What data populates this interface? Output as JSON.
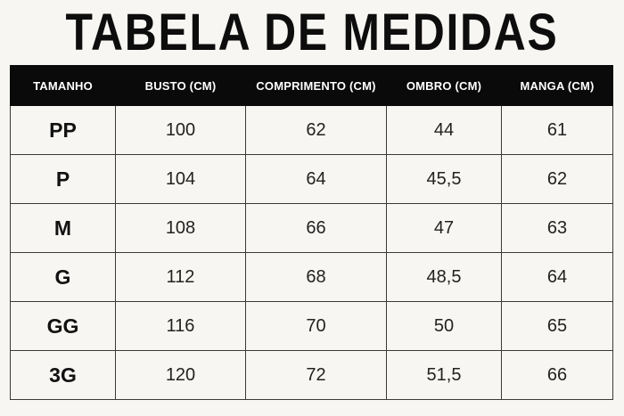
{
  "title": "TABELA DE MEDIDAS",
  "headers": [
    "TAMANHO",
    "BUSTO (CM)",
    "COMPRIMENTO (CM)",
    "OMBRO (CM)",
    "MANGA (CM)"
  ],
  "rows": [
    [
      "PP",
      "100",
      "62",
      "44",
      "61"
    ],
    [
      "P",
      "104",
      "64",
      "45,5",
      "62"
    ],
    [
      "M",
      "108",
      "66",
      "47",
      "63"
    ],
    [
      "G",
      "112",
      "68",
      "48,5",
      "64"
    ],
    [
      "GG",
      "116",
      "70",
      "50",
      "65"
    ],
    [
      "3G",
      "120",
      "72",
      "51,5",
      "66"
    ]
  ],
  "colors": {
    "background": "#f8f6f2",
    "header_bg": "#0a0a0a",
    "header_text": "#ffffff",
    "text": "#111111"
  }
}
